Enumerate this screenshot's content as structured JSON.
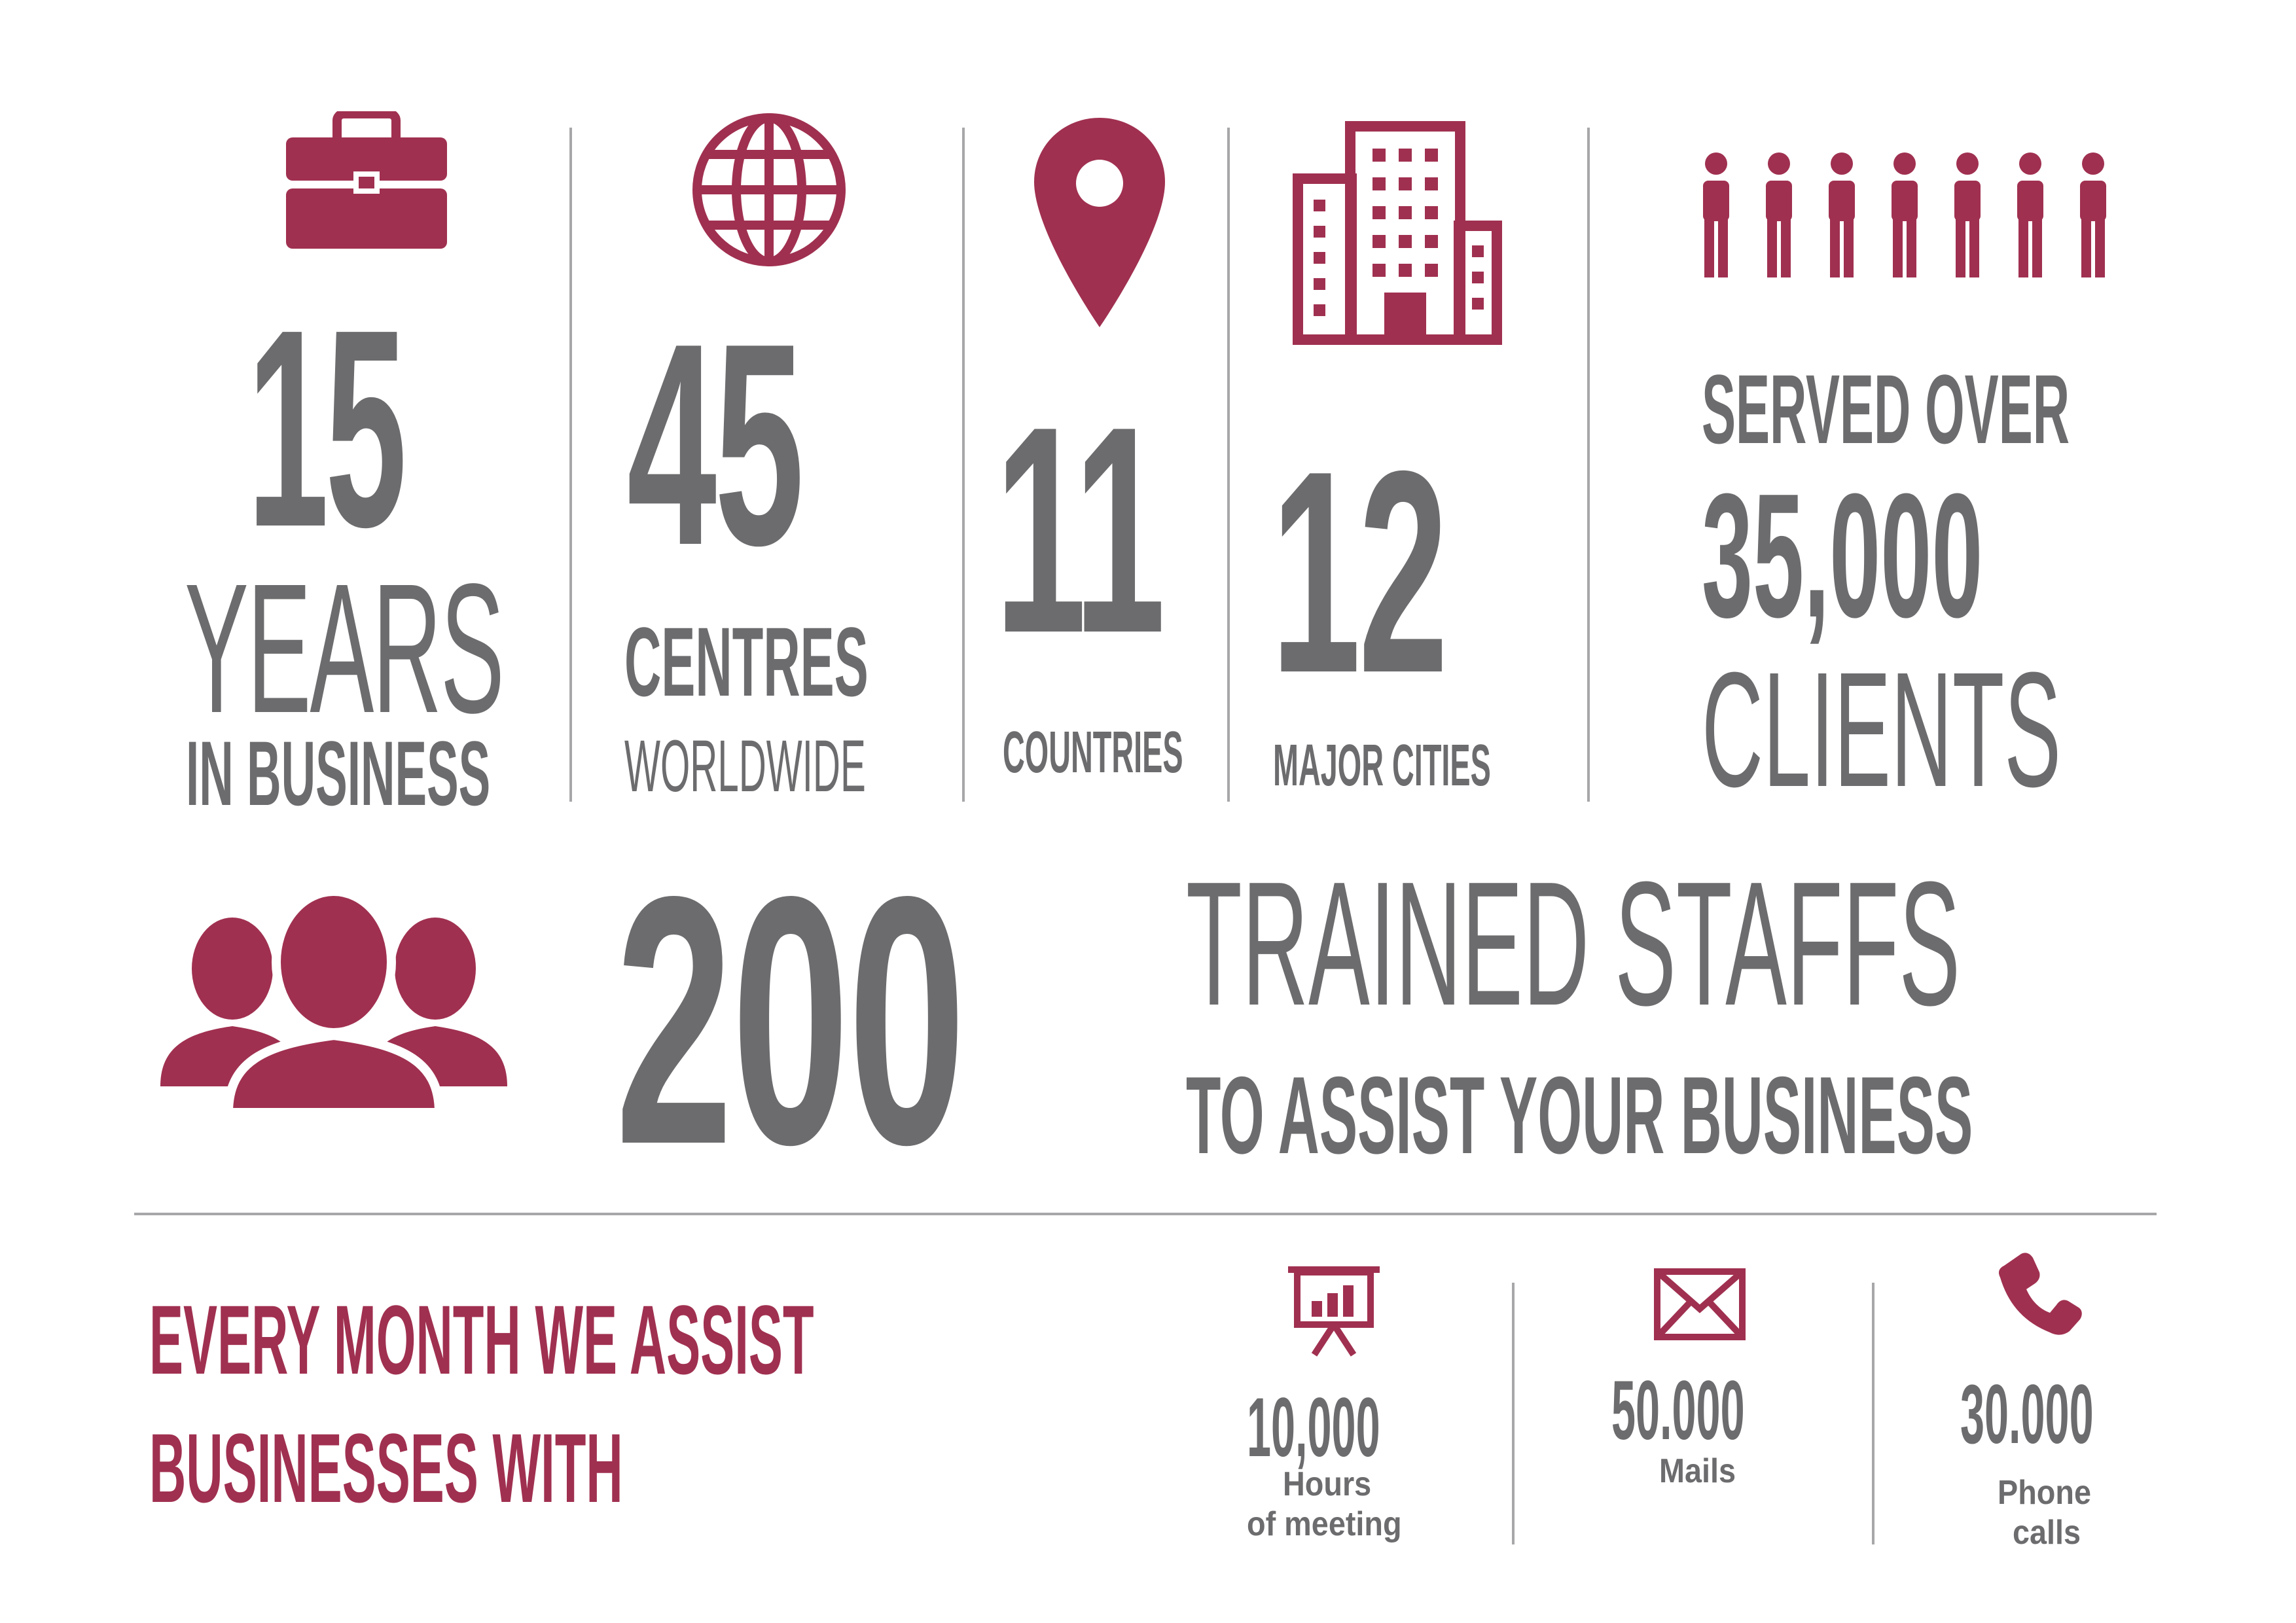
{
  "colors": {
    "accent": "#a03050",
    "text": "#6c6c6e",
    "divider": "#a7a7a9",
    "background": "#ffffff"
  },
  "stats": {
    "years": {
      "value": "15",
      "word": "YEARS",
      "caption": "IN BUSINESS",
      "icon": "briefcase-icon"
    },
    "centres": {
      "value": "45",
      "word": "CENTRES",
      "caption": "WORLDWIDE",
      "icon": "globe-icon"
    },
    "countries": {
      "value": "11",
      "caption": "COUNTRIES",
      "icon": "location-pin-icon"
    },
    "cities": {
      "value": "12",
      "caption": "MAJOR CITIES",
      "icon": "buildings-icon"
    },
    "clients": {
      "lead": "SERVED OVER",
      "value": "35,000",
      "caption": "CLIENTS",
      "icon": "people-row-icon"
    }
  },
  "staff": {
    "value": "200",
    "headline": "TRAINED STAFFS",
    "caption": "TO ASSIST YOUR BUSINESS",
    "icon": "team-icon"
  },
  "monthly": {
    "heading_line1": "EVERY MONTH WE ASSIST",
    "heading_line2": "BUSINESSES WITH",
    "items": [
      {
        "value": "10,000",
        "label_line1": "Hours",
        "label_line2": "of meeting",
        "icon": "presentation-chart-icon"
      },
      {
        "value": "50.000",
        "label_line1": "Mails",
        "label_line2": "",
        "icon": "envelope-icon"
      },
      {
        "value": "30.000",
        "label_line1": "Phone",
        "label_line2": "calls",
        "icon": "phone-icon"
      }
    ]
  }
}
